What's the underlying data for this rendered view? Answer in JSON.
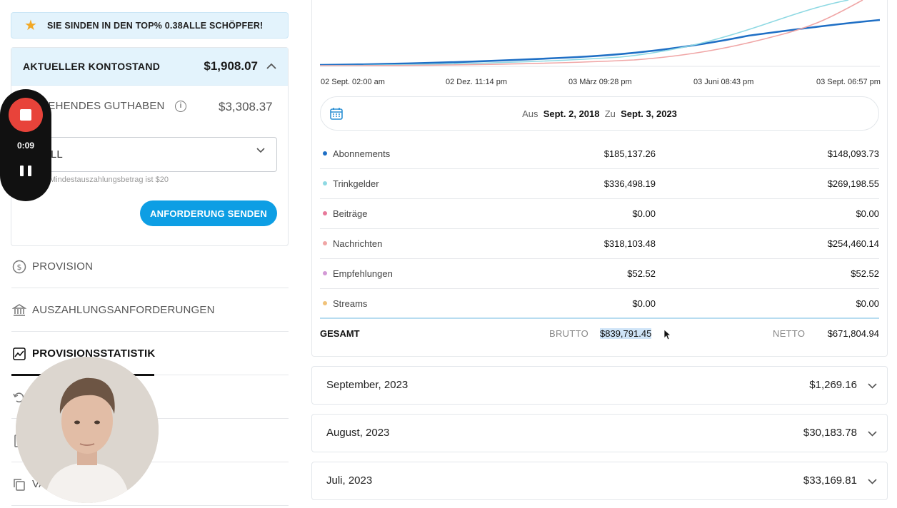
{
  "banner": {
    "icon": "star-icon",
    "text": "SIE SINDEN IN DEN TOP% 0.38ALLE SCHÖPFER!"
  },
  "balance": {
    "title": "AKTUELLER KONTOSTAND",
    "value": "$1,908.07",
    "pending_label": "TEHENDES GUTHABEN",
    "pending_value": "$3,308.37",
    "select_value": "LL",
    "hint": "Mindestauszahlungsbetrag ist $20",
    "send_button": "ANFORDERUNG SENDEN"
  },
  "nav": {
    "commission": "PROVISION",
    "payout_requests": "AUSZAHLUNGSANFORDERUNGEN",
    "statistics": "PROVISIONSSTATISTIK",
    "partial": "VA"
  },
  "recorder": {
    "time": "0:09"
  },
  "chart_data": {
    "type": "line",
    "x_ticks": [
      "02 Sept. 02:00 am",
      "02 Dez. 11:14 pm",
      "03 März 09:28 pm",
      "03 Juni 08:43 pm",
      "03 Sept. 06:57 pm"
    ],
    "series": [
      {
        "color": "#1f6fc5"
      },
      {
        "color": "#8fd9e3"
      },
      {
        "color": "#f0a6a6"
      }
    ]
  },
  "date_range": {
    "from_label": "Aus",
    "from": "Sept. 2, 2018",
    "to_label": "Zu",
    "to": "Sept. 3, 2023"
  },
  "breakdown": [
    {
      "name": "Abonnements",
      "gross": "$185,137.26",
      "net": "$148,093.73",
      "color": "#1f6fc5"
    },
    {
      "name": "Trinkgelder",
      "gross": "$336,498.19",
      "net": "$269,198.55",
      "color": "#8fd9e3"
    },
    {
      "name": "Beiträge",
      "gross": "$0.00",
      "net": "$0.00",
      "color": "#e8799a"
    },
    {
      "name": "Nachrichten",
      "gross": "$318,103.48",
      "net": "$254,460.14",
      "color": "#f0a6a6"
    },
    {
      "name": "Empfehlungen",
      "gross": "$52.52",
      "net": "$52.52",
      "color": "#d39ad6"
    },
    {
      "name": "Streams",
      "gross": "$0.00",
      "net": "$0.00",
      "color": "#f0c27a"
    }
  ],
  "total": {
    "label": "GESAMT",
    "gross_label": "BRUTTO",
    "gross": "$839,791.45",
    "net_label": "NETTO",
    "net": "$671,804.94"
  },
  "months": [
    {
      "month": "September, 2023",
      "value": "$1,269.16"
    },
    {
      "month": "August, 2023",
      "value": "$30,183.78"
    },
    {
      "month": "Juli, 2023",
      "value": "$33,169.81"
    }
  ]
}
